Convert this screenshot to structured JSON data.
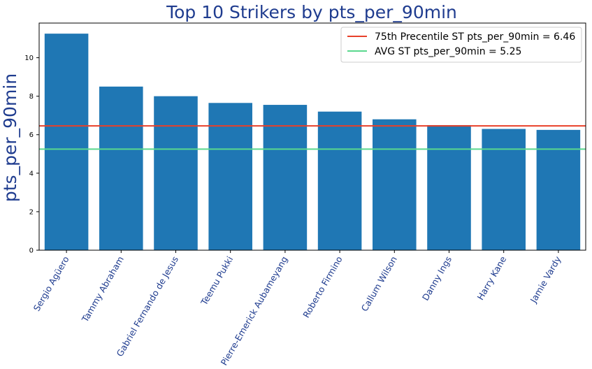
{
  "chart_data": {
    "type": "bar",
    "title": "Top 10 Strikers by pts_per_90min",
    "xlabel": "",
    "ylabel": "pts_per_90min",
    "categories": [
      "Sergio Agüero",
      "Tammy Abraham",
      "Gabriel Fernando de Jesus",
      "Teemu Pukki",
      "Pierre-Emerick Aubameyang",
      "Roberto Firmino",
      "Callum Wilson",
      "Danny Ings",
      "Harry Kane",
      "Jamie Vardy"
    ],
    "values": [
      11.25,
      8.5,
      8.0,
      7.65,
      7.55,
      7.2,
      6.8,
      6.5,
      6.3,
      6.25
    ],
    "ylim": [
      0,
      11.8
    ],
    "yticks": [
      0,
      2,
      4,
      6,
      8,
      10
    ],
    "grid": false,
    "legend_position": "top-right",
    "reference_lines": [
      {
        "label": "75th Precentile ST pts_per_90min = 6.46",
        "value": 6.46,
        "color": "#e8402a"
      },
      {
        "label": "AVG ST pts_per_90min = 5.25",
        "value": 5.25,
        "color": "#5ad88e"
      }
    ],
    "colors": {
      "bar": "#1f77b4",
      "title": "#1f3c8f",
      "tick_label": "#1f3c8f",
      "axis": "#000000"
    }
  }
}
